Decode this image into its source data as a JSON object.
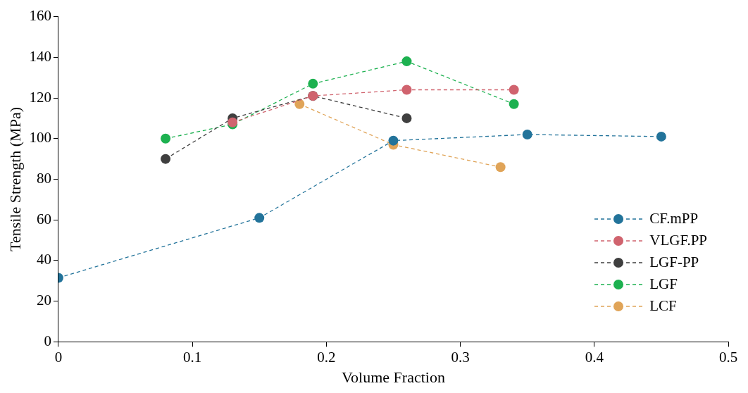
{
  "chart_data": {
    "type": "line",
    "xlabel": "Volume Fraction",
    "ylabel": "Tensile Strength (MPa)",
    "xlim": [
      0,
      0.5
    ],
    "xticks": [
      0,
      0.1,
      0.2,
      0.3,
      0.4,
      0.5
    ],
    "ylim": [
      0,
      160
    ],
    "yticks": [
      0,
      20,
      40,
      60,
      80,
      100,
      120,
      140,
      160
    ],
    "grid": false,
    "legend": "bottom right",
    "marker": "circle",
    "line_style": "dashed",
    "series": [
      {
        "name": "CF.mPP",
        "color": "#22739a",
        "x": [
          0,
          0.15,
          0.25,
          0.35,
          0.45
        ],
        "values": [
          31.5,
          61,
          99,
          102,
          101
        ]
      },
      {
        "name": "VLGF.PP",
        "color": "#d0636e",
        "x": [
          0.13,
          0.19,
          0.26,
          0.34
        ],
        "values": [
          108,
          121,
          124,
          124
        ]
      },
      {
        "name": "LGF-PP",
        "color": "#3f3f3f",
        "x": [
          0.08,
          0.13,
          0.19,
          0.26
        ],
        "values": [
          90,
          110,
          121,
          110
        ]
      },
      {
        "name": "LGF",
        "color": "#1db150",
        "x": [
          0.08,
          0.13,
          0.19,
          0.26,
          0.34
        ],
        "values": [
          100,
          107,
          127,
          138,
          117
        ]
      },
      {
        "name": "LCF",
        "color": "#e0a458",
        "x": [
          0.18,
          0.25,
          0.33
        ],
        "values": [
          117,
          97,
          86
        ]
      }
    ]
  }
}
